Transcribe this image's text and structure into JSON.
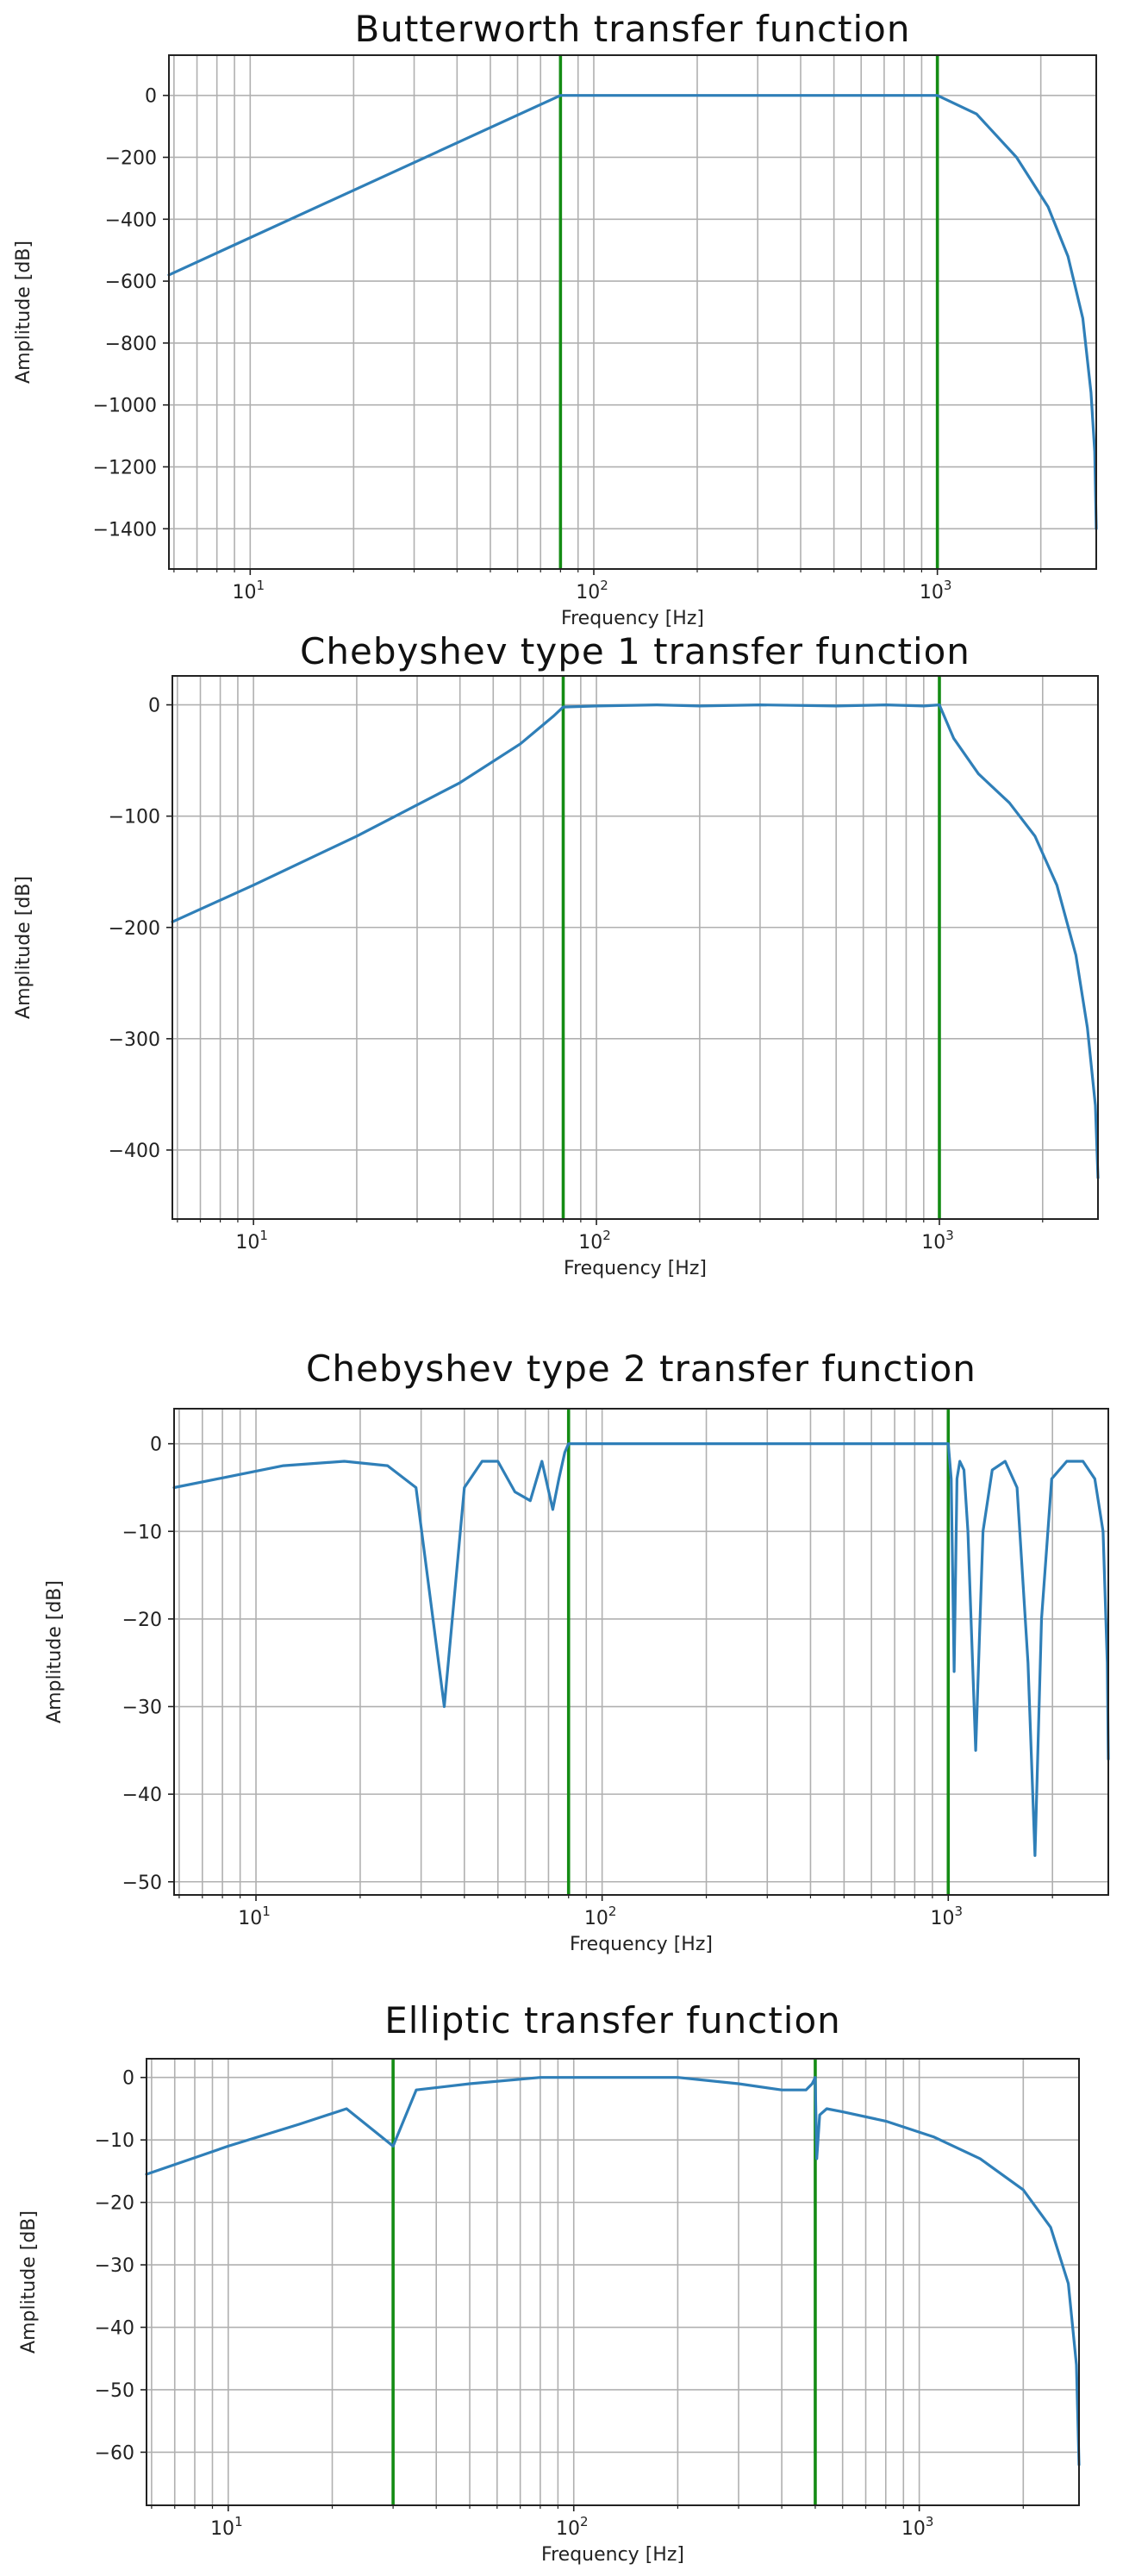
{
  "colors": {
    "series": "#2f7fb8",
    "cutoff": "#148c14",
    "grid": "#b0b0b0"
  },
  "chart_data": [
    {
      "type": "line",
      "title": "Butterworth transfer function",
      "xlabel": "Frequency [Hz]",
      "ylabel": "Amplitude [dB]",
      "xscale": "log",
      "xlim": [
        5.8,
        2900
      ],
      "ylim": [
        -1530,
        130
      ],
      "yticks": [
        0,
        -200,
        -400,
        -600,
        -800,
        -1000,
        -1200,
        -1400
      ],
      "xticks": [
        {
          "base": "10",
          "exp": "1",
          "value": 10
        },
        {
          "base": "10",
          "exp": "2",
          "value": 100
        },
        {
          "base": "10",
          "exp": "3",
          "value": 1000
        }
      ],
      "grid": true,
      "cutoffs": [
        80,
        1000
      ],
      "series": [
        {
          "x": [
            5.8,
            80,
            1000,
            1300,
            1700,
            2100,
            2400,
            2650,
            2800,
            2870,
            2900
          ],
          "y": [
            -580,
            0,
            0,
            -60,
            -200,
            -360,
            -520,
            -720,
            -960,
            -1150,
            -1400
          ]
        }
      ]
    },
    {
      "type": "line",
      "title": "Chebyshev type 1 transfer function",
      "xlabel": "Frequency [Hz]",
      "ylabel": "Amplitude [dB]",
      "xscale": "log",
      "xlim": [
        5.8,
        2900
      ],
      "ylim": [
        -462,
        26
      ],
      "yticks": [
        0,
        -100,
        -200,
        -300,
        -400
      ],
      "xticks": [
        {
          "base": "10",
          "exp": "1",
          "value": 10
        },
        {
          "base": "10",
          "exp": "2",
          "value": 100
        },
        {
          "base": "10",
          "exp": "3",
          "value": 1000
        }
      ],
      "grid": true,
      "cutoffs": [
        80,
        1000
      ],
      "series": [
        {
          "x": [
            5.8,
            10,
            20,
            40,
            60,
            75,
            80,
            100,
            150,
            200,
            300,
            500,
            700,
            900,
            1000,
            1100,
            1300,
            1600,
            1900,
            2200,
            2500,
            2700,
            2850,
            2900
          ],
          "y": [
            -195,
            -162,
            -118,
            -70,
            -35,
            -10,
            -2,
            -1,
            0,
            -1,
            0,
            -1,
            0,
            -1,
            0,
            -30,
            -62,
            -88,
            -118,
            -162,
            -225,
            -290,
            -360,
            -425
          ]
        }
      ]
    },
    {
      "type": "line",
      "title": "Chebyshev type 2 transfer function",
      "xlabel": "Frequency [Hz]",
      "ylabel": "Amplitude [dB]",
      "xscale": "log",
      "xlim": [
        5.8,
        2900
      ],
      "ylim": [
        -51.5,
        4
      ],
      "yticks": [
        0,
        -10,
        -20,
        -30,
        -40,
        -50
      ],
      "xticks": [
        {
          "base": "10",
          "exp": "1",
          "value": 10
        },
        {
          "base": "10",
          "exp": "2",
          "value": 100
        },
        {
          "base": "10",
          "exp": "3",
          "value": 1000
        }
      ],
      "grid": true,
      "cutoffs": [
        80,
        1000
      ],
      "series": [
        {
          "x": [
            5.8,
            12,
            18,
            24,
            29,
            35,
            40,
            45,
            50,
            56,
            62,
            67,
            72,
            75,
            78,
            80,
            1000,
            1020,
            1040,
            1060,
            1080,
            1110,
            1140,
            1200,
            1260,
            1340,
            1460,
            1580,
            1700,
            1780,
            1860,
            1990,
            2200,
            2450,
            2650,
            2800,
            2880,
            2900
          ],
          "y": [
            -5,
            -2.5,
            -2,
            -2.5,
            -5,
            -30,
            -5,
            -2,
            -2,
            -5.5,
            -6.5,
            -2,
            -7.5,
            -4,
            -1,
            0,
            0,
            -4,
            -26,
            -4,
            -2,
            -3,
            -10,
            -35,
            -10,
            -3,
            -2,
            -5,
            -25,
            -47,
            -20,
            -4,
            -2,
            -2,
            -4,
            -10,
            -25,
            -36
          ]
        }
      ]
    },
    {
      "type": "line",
      "title": "Elliptic transfer function",
      "xlabel": "Frequency [Hz]",
      "ylabel": "Amplitude [dB]",
      "xscale": "log",
      "xlim": [
        5.8,
        2900
      ],
      "ylim": [
        -68.5,
        3
      ],
      "yticks": [
        0,
        -10,
        -20,
        -30,
        -40,
        -50,
        -60
      ],
      "xticks": [
        {
          "base": "10",
          "exp": "1",
          "value": 10
        },
        {
          "base": "10",
          "exp": "2",
          "value": 100
        },
        {
          "base": "10",
          "exp": "3",
          "value": 1000
        }
      ],
      "grid": true,
      "cutoffs": [
        30,
        500
      ],
      "series": [
        {
          "x": [
            5.8,
            10,
            16,
            22,
            30,
            35,
            50,
            80,
            120,
            200,
            300,
            400,
            470,
            490,
            500,
            505,
            515,
            540,
            600,
            800,
            1100,
            1500,
            2000,
            2400,
            2700,
            2850,
            2900
          ],
          "y": [
            -15.5,
            -11,
            -7.5,
            -5,
            -11,
            -2,
            -1,
            0,
            0,
            0,
            -1,
            -2,
            -2,
            -1,
            0,
            -13,
            -6,
            -5,
            -5.5,
            -7,
            -9.5,
            -13,
            -18,
            -24,
            -33,
            -46,
            -62
          ]
        }
      ]
    }
  ]
}
